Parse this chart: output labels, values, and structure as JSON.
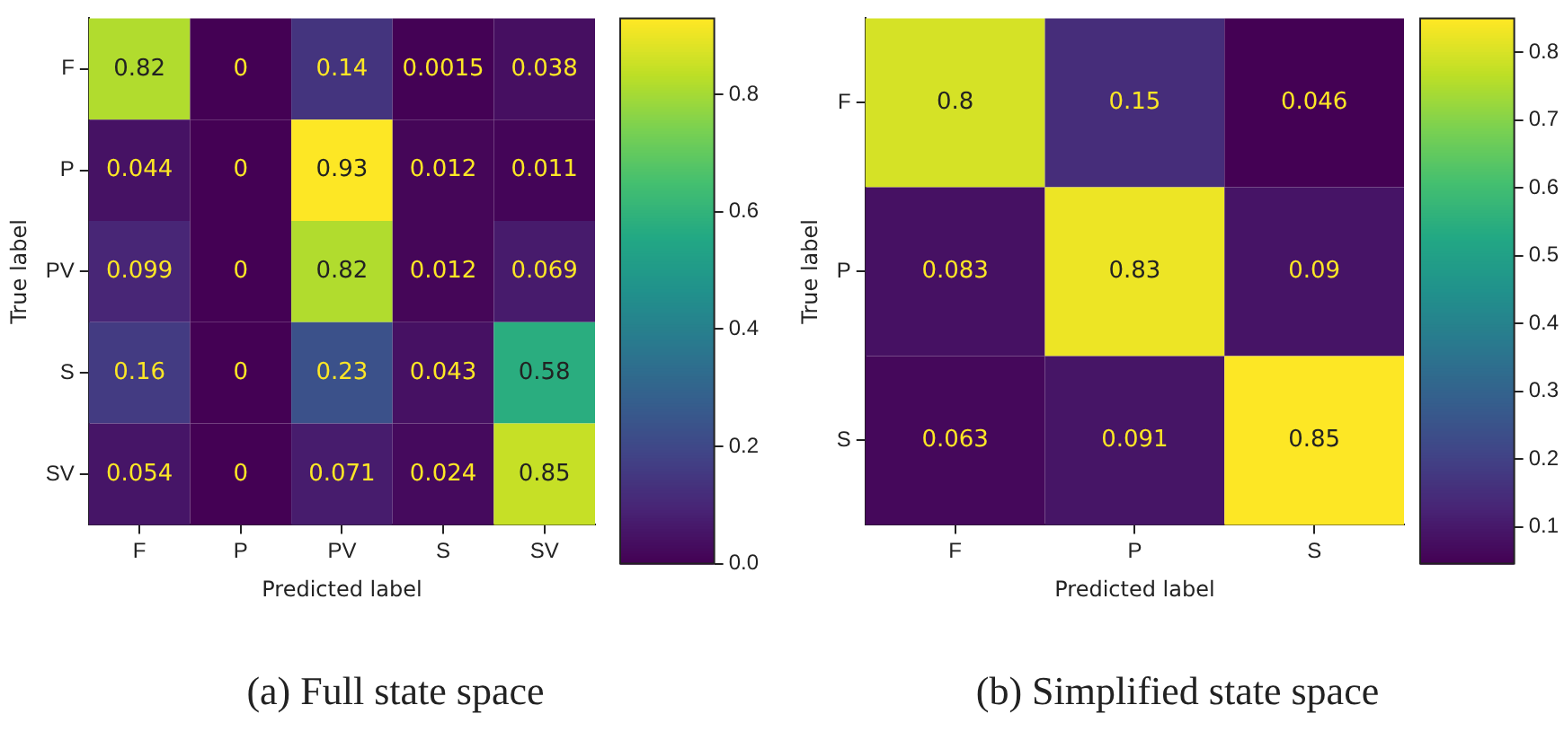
{
  "chart_data": [
    {
      "type": "heatmap",
      "title": "(a) Full state space",
      "xlabel": "Predicted label",
      "ylabel": "True label",
      "categories": [
        "F",
        "P",
        "PV",
        "S",
        "SV"
      ],
      "y_categories": [
        "F",
        "P",
        "PV",
        "S",
        "SV"
      ],
      "cells": [
        [
          0.82,
          0,
          0.14,
          0.0015,
          0.038
        ],
        [
          0.044,
          0,
          0.93,
          0.012,
          0.011
        ],
        [
          0.099,
          0,
          0.82,
          0.012,
          0.069
        ],
        [
          0.16,
          0,
          0.23,
          0.043,
          0.58
        ],
        [
          0.054,
          0,
          0.071,
          0.024,
          0.85
        ]
      ],
      "clim": [
        0,
        0.93
      ],
      "cticks": [
        {
          "value": 0,
          "label": "0.0"
        },
        0.2,
        0.4,
        0.6,
        0.8
      ],
      "data_labels": true
    },
    {
      "type": "heatmap",
      "title": "(b) Simplified state space",
      "xlabel": "Predicted label",
      "ylabel": "True label",
      "categories": [
        "F",
        "P",
        "S"
      ],
      "y_categories": [
        "F",
        "P",
        "S"
      ],
      "cells": [
        [
          0.8,
          0.15,
          0.046
        ],
        [
          0.083,
          0.83,
          0.09
        ],
        [
          0.063,
          0.091,
          0.85
        ]
      ],
      "clim": [
        0.046,
        0.85
      ],
      "cticks": [
        0.1,
        0.2,
        0.3,
        0.4,
        0.5,
        0.6,
        0.7,
        0.8
      ],
      "data_labels": true
    }
  ]
}
